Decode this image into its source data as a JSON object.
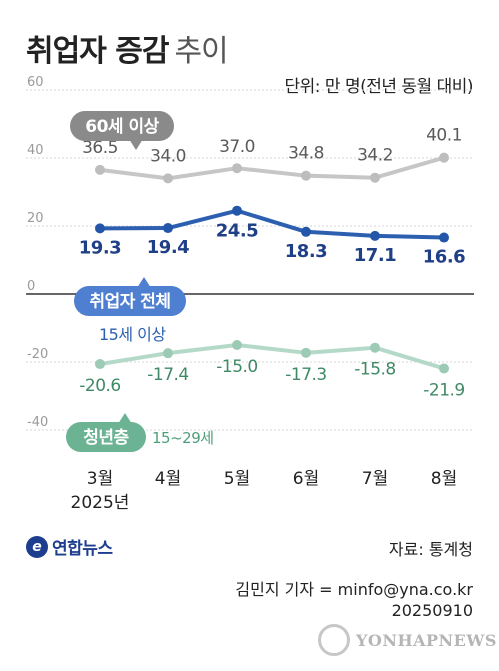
{
  "header": {
    "title_bold": "취업자 증감",
    "title_light": "추이",
    "unit": "단위: 만 명(전년 동월 대비)"
  },
  "chart_data": {
    "type": "line",
    "categories": [
      "3월",
      "4월",
      "5월",
      "6월",
      "7월",
      "8월"
    ],
    "year_label": "2025년",
    "ylim": [
      -40,
      60
    ],
    "yticks": [
      60,
      40,
      20,
      0,
      -20,
      -40
    ],
    "grid": true,
    "series": [
      {
        "name": "60세 이상",
        "values": [
          36.5,
          34.0,
          37.0,
          34.8,
          34.2,
          40.1
        ],
        "labels": [
          "36.5",
          "34.0",
          "37.0",
          "34.8",
          "34.2",
          "40.1"
        ],
        "color": "#c6c6c6",
        "point_color": "#bdbdbd",
        "label_color": "#5a5a5a",
        "badge_color": "#8a8a8a"
      },
      {
        "name": "취업자 전체",
        "sublabel": "15세 이상",
        "values": [
          19.3,
          19.4,
          24.5,
          18.3,
          17.1,
          16.6
        ],
        "labels": [
          "19.3",
          "19.4",
          "24.5",
          "18.3",
          "17.1",
          "16.6"
        ],
        "color": "#2c5fb0",
        "point_color": "#2356a8",
        "label_color": "#1f3f86",
        "badge_color": "#4f7fd0"
      },
      {
        "name": "청년층",
        "sublabel": "15~29세",
        "values": [
          -20.6,
          -17.4,
          -15.0,
          -17.3,
          -15.8,
          -21.9
        ],
        "labels": [
          "-20.6",
          "-17.4",
          "-15.0",
          "-17.3",
          "-15.8",
          "-21.9"
        ],
        "color": "#b5d9c9",
        "point_color": "#9ccab4",
        "label_color": "#3f8a66",
        "badge_color": "#6bb393"
      }
    ]
  },
  "footer": {
    "source": "자료: 통계청",
    "reporter": "김민지 기자 = minfo@yna.co.kr",
    "date": "20250910",
    "logo_text": "연합뉴스",
    "watermark": "YONHAPNEWS"
  }
}
